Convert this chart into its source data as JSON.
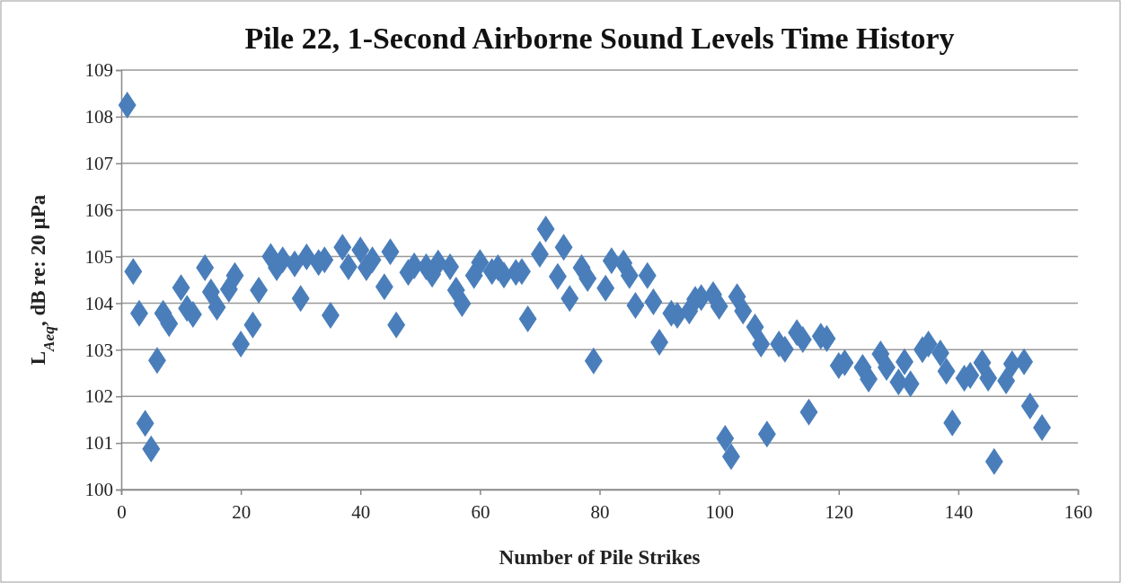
{
  "chart_data": {
    "type": "scatter",
    "title": "Pile 22, 1-Second Airborne Sound Levels Time History",
    "xlabel": "Number of Pile Strikes",
    "ylabel": "L$_{Aeq}$, dB re: 20 µPa",
    "x": [
      1,
      2,
      3,
      4,
      5,
      6,
      7,
      8,
      10,
      11,
      12,
      14,
      15,
      16,
      18,
      19,
      20,
      22,
      23,
      25,
      26,
      27,
      29,
      30,
      31,
      33,
      34,
      35,
      37,
      38,
      40,
      41,
      42,
      44,
      45,
      46,
      48,
      49,
      51,
      52,
      53,
      55,
      56,
      57,
      59,
      60,
      62,
      63,
      64,
      66,
      67,
      68,
      70,
      71,
      73,
      74,
      75,
      77,
      78,
      79,
      81,
      82,
      84,
      85,
      86,
      88,
      89,
      90,
      92,
      93,
      95,
      96,
      97,
      99,
      100,
      101,
      102,
      103,
      104,
      106,
      107,
      108,
      110,
      111,
      113,
      114,
      115,
      117,
      118,
      120,
      121,
      124,
      125,
      127,
      128,
      130,
      131,
      132,
      134,
      135,
      137,
      138,
      139,
      141,
      142,
      144,
      145,
      146,
      148,
      149,
      151,
      152,
      154
    ],
    "series": [
      {
        "color": "#4a7ebb",
        "values": [
          108.25,
          104.68,
          103.78,
          101.42,
          100.87,
          102.77,
          103.78,
          103.56,
          104.33,
          103.89,
          103.76,
          104.76,
          104.24,
          103.91,
          104.3,
          104.59,
          103.12,
          103.53,
          104.28,
          105.0,
          104.76,
          104.93,
          104.84,
          104.1,
          104.99,
          104.87,
          104.93,
          103.74,
          105.2,
          104.78,
          105.14,
          104.76,
          104.93,
          104.35,
          105.1,
          103.53,
          104.66,
          104.8,
          104.78,
          104.62,
          104.86,
          104.78,
          104.28,
          103.99,
          104.59,
          104.87,
          104.68,
          104.76,
          104.6,
          104.66,
          104.68,
          103.66,
          105.05,
          105.59,
          104.57,
          105.2,
          104.1,
          104.76,
          104.53,
          102.76,
          104.32,
          104.91,
          104.86,
          104.59,
          103.95,
          104.59,
          104.03,
          103.16,
          103.78,
          103.74,
          103.83,
          104.08,
          104.12,
          104.18,
          103.93,
          101.1,
          100.71,
          104.14,
          103.83,
          103.49,
          103.12,
          101.19,
          103.12,
          103.01,
          103.37,
          103.22,
          101.66,
          103.29,
          103.24,
          102.66,
          102.72,
          102.62,
          102.37,
          102.91,
          102.62,
          102.31,
          102.74,
          102.27,
          103.0,
          103.12,
          102.93,
          102.54,
          101.43,
          102.39,
          102.45,
          102.72,
          102.39,
          100.6,
          102.33,
          102.7,
          102.74,
          101.79,
          101.33
        ]
      }
    ],
    "xlim": [
      0,
      160
    ],
    "xticks": [
      0,
      20,
      40,
      60,
      80,
      100,
      120,
      140,
      160
    ],
    "ylim": [
      100,
      109
    ],
    "yticks": [
      100,
      101,
      102,
      103,
      104,
      105,
      106,
      107,
      108,
      109
    ],
    "grid": "y",
    "marker": "diamond"
  }
}
